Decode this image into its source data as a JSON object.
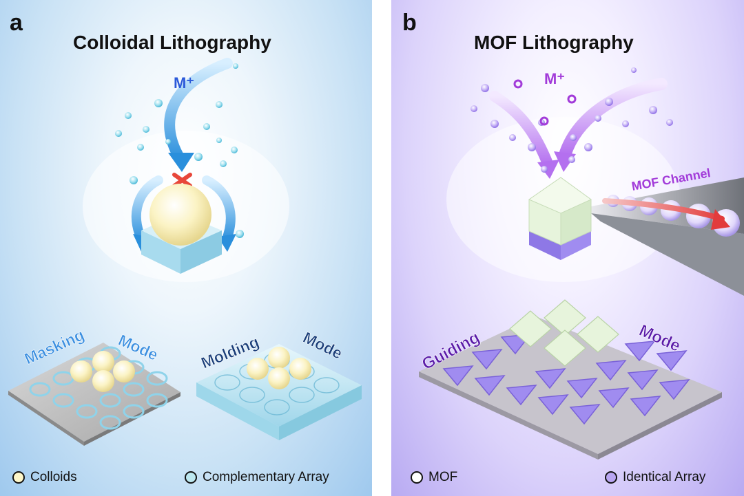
{
  "panel_a": {
    "letter": "a",
    "title": "Colloidal Lithography",
    "ion_label": "M⁺",
    "mode_left": {
      "word1": "Masking",
      "word2": "Mode"
    },
    "mode_right": {
      "word1": "Molding",
      "word2": "Mode"
    },
    "legend": [
      {
        "label": "Colloids",
        "color": "#fdf6c9"
      },
      {
        "label": "Complementary Array",
        "color": "#bde8f0"
      }
    ],
    "colors": {
      "ion": "#2b59d9",
      "arrow": "#2a8fdc",
      "sphere": "#fbf3c4",
      "block": "#bfe4f2",
      "masking": "#3b8fe0",
      "molding": "#1b3f7a"
    }
  },
  "panel_b": {
    "letter": "b",
    "title": "MOF Lithography",
    "ion_label": "M⁺",
    "channel_label": "MOF Channel",
    "mode": {
      "word1": "Guiding",
      "word2": "Mode"
    },
    "legend": [
      {
        "label": "MOF",
        "color": "#ffffff"
      },
      {
        "label": "Identical Array",
        "color": "#b9a6f2"
      }
    ],
    "colors": {
      "ion": "#a23bd9",
      "crystal": "#e4f1da",
      "triangle": "#a08cf0",
      "channel_arrow": "#e23b3b",
      "guiding": "#5a1aa8"
    }
  }
}
